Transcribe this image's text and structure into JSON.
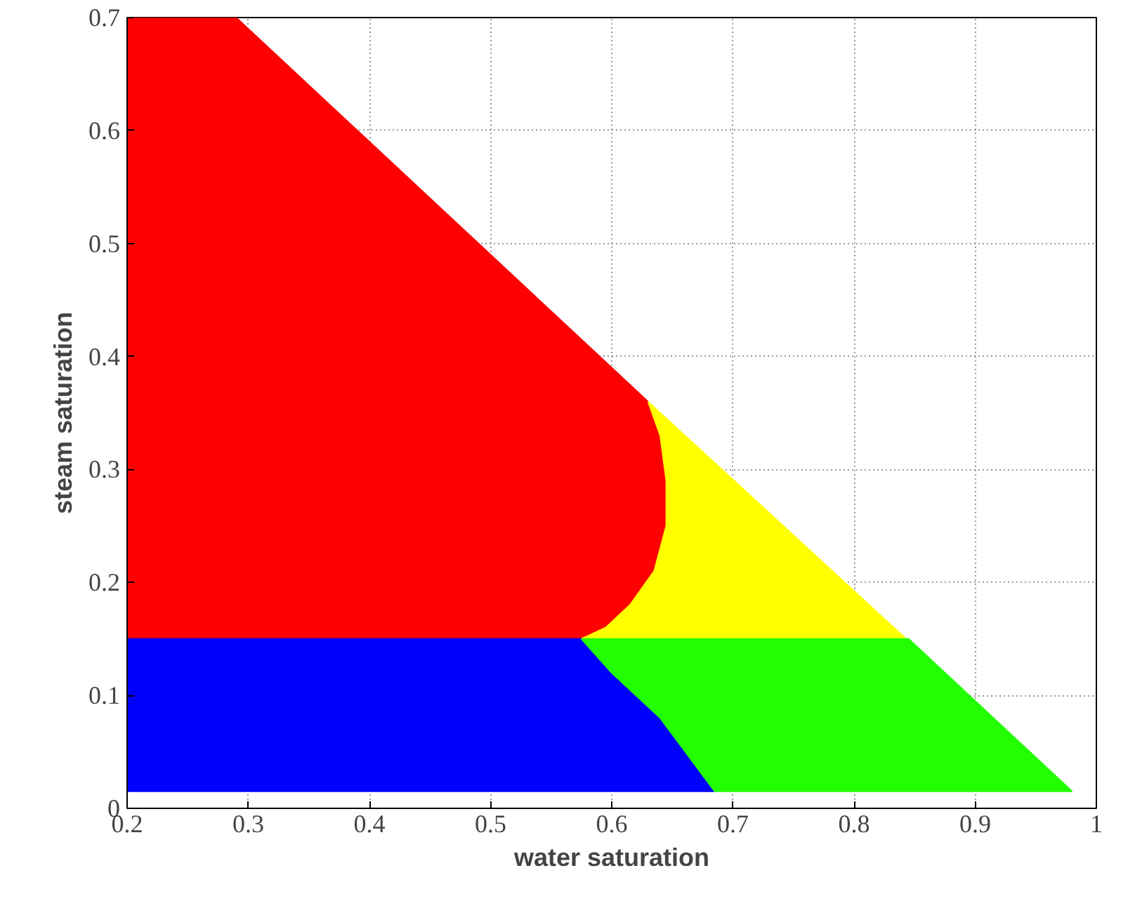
{
  "chart_data": {
    "type": "area",
    "xlabel": "water saturation",
    "ylabel": "steam saturation",
    "xlim": [
      0.2,
      1.0
    ],
    "ylim": [
      0,
      0.7
    ],
    "xticks": [
      0.2,
      0.3,
      0.4,
      0.5,
      0.6,
      0.7,
      0.8,
      0.9,
      {
        "value": 1.0,
        "label": "1"
      }
    ],
    "yticks": [
      {
        "value": 0,
        "label": "0"
      },
      0.1,
      0.2,
      0.3,
      0.4,
      0.5,
      0.6,
      0.7
    ],
    "grid": true,
    "series": [
      {
        "color": "#ff0000",
        "x": [
          0.2,
          0.2,
          0.29,
          0.63,
          0.64,
          0.645,
          0.645,
          0.635,
          0.615,
          0.595,
          0.575
        ],
        "values": [
          0.15,
          0.7,
          0.7,
          0.36,
          0.33,
          0.29,
          0.25,
          0.21,
          0.18,
          0.16,
          0.15
        ]
      },
      {
        "color": "#ffff00",
        "x": [
          0.63,
          0.845,
          0.575,
          0.595,
          0.615,
          0.635,
          0.645,
          0.645,
          0.64
        ],
        "values": [
          0.36,
          0.148,
          0.15,
          0.16,
          0.18,
          0.21,
          0.25,
          0.29,
          0.33
        ]
      },
      {
        "color": "#0000ff",
        "x": [
          0.2,
          0.2,
          0.575,
          0.6,
          0.64,
          0.685
        ],
        "values": [
          0.015,
          0.15,
          0.15,
          0.12,
          0.08,
          0.015
        ]
      },
      {
        "color": "#22ff00",
        "x": [
          0.575,
          0.845,
          0.98,
          0.685,
          0.64,
          0.6
        ],
        "values": [
          0.15,
          0.15,
          0.015,
          0.015,
          0.08,
          0.12
        ]
      }
    ]
  }
}
